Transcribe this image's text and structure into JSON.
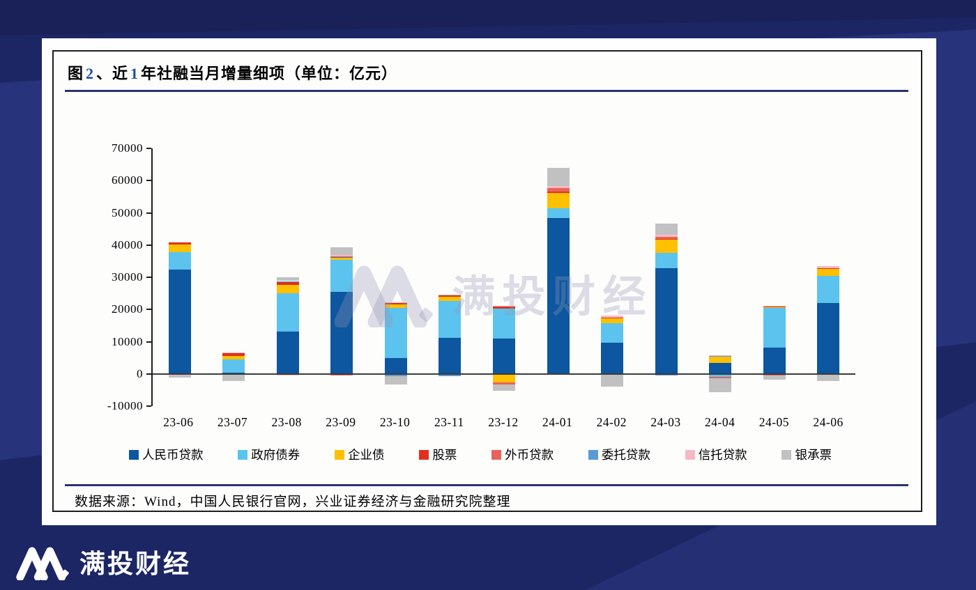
{
  "page": {
    "brand_logo_text": "满投财经",
    "background_color": "#1c2664"
  },
  "figure": {
    "title_segments": [
      {
        "text": "图",
        "number": false
      },
      {
        "text": "2",
        "number": true
      },
      {
        "text": "、近",
        "number": false
      },
      {
        "text": "1",
        "number": true
      },
      {
        "text": "年社融当月增量细项（单位：亿元）",
        "number": false
      }
    ],
    "title_full": "图 2、近 1 年社融当月增量细项（单位：亿元）",
    "source_note": "数据来源：Wind，中国人民银行官网，兴业证券经济与金融研究院整理",
    "watermark_text": "满投财经"
  },
  "chart_data": {
    "type": "bar",
    "stacked": true,
    "unit": "亿元",
    "grid": false,
    "legend_position": "bottom",
    "ylim": [
      -10000,
      70000
    ],
    "ytick_step": 10000,
    "yticks": [
      70000,
      60000,
      50000,
      40000,
      30000,
      20000,
      10000,
      0,
      -10000
    ],
    "categories": [
      "23-06",
      "23-07",
      "23-08",
      "23-09",
      "23-10",
      "23-11",
      "23-12",
      "24-01",
      "24-02",
      "24-03",
      "24-04",
      "24-05",
      "24-06"
    ],
    "series": [
      {
        "name": "人民币贷款",
        "color": "#0d56a0",
        "values": [
          32400,
          360,
          13170,
          25370,
          4840,
          11100,
          11050,
          48400,
          9770,
          32900,
          3310,
          8160,
          21960
        ]
      },
      {
        "name": "政府债券",
        "color": "#5bc3ee",
        "values": [
          5400,
          4110,
          11800,
          9950,
          15600,
          11500,
          9280,
          2950,
          6010,
          4640,
          -980,
          12270,
          8490
        ]
      },
      {
        "name": "企业债",
        "color": "#ffc000",
        "values": [
          2360,
          1180,
          2700,
          660,
          1140,
          1330,
          -2620,
          4840,
          1640,
          4120,
          2030,
          310,
          2130
        ]
      },
      {
        "name": "股票",
        "color": "#e0301e",
        "values": [
          700,
          790,
          1040,
          330,
          320,
          360,
          510,
          420,
          110,
          230,
          190,
          110,
          150
        ]
      },
      {
        "name": "外币贷款",
        "color": "#e8635c",
        "values": [
          -190,
          -340,
          -200,
          -580,
          -300,
          -360,
          -650,
          990,
          -10,
          620,
          -310,
          -490,
          -230
        ]
      },
      {
        "name": "委托贷款",
        "color": "#5b9bd5",
        "values": [
          -60,
          10,
          100,
          210,
          -430,
          -390,
          -40,
          -360,
          -170,
          -460,
          90,
          -10,
          -10
        ]
      },
      {
        "name": "信托贷款",
        "color": "#f6bac5",
        "values": [
          -150,
          230,
          -220,
          400,
          390,
          200,
          350,
          730,
          570,
          680,
          140,
          220,
          750
        ]
      },
      {
        "name": "银承票",
        "color": "#c1c1c1",
        "values": [
          -690,
          -1960,
          1130,
          2400,
          -2540,
          200,
          -1870,
          5640,
          -3690,
          3550,
          -4490,
          -1330,
          -2050
        ]
      }
    ]
  }
}
